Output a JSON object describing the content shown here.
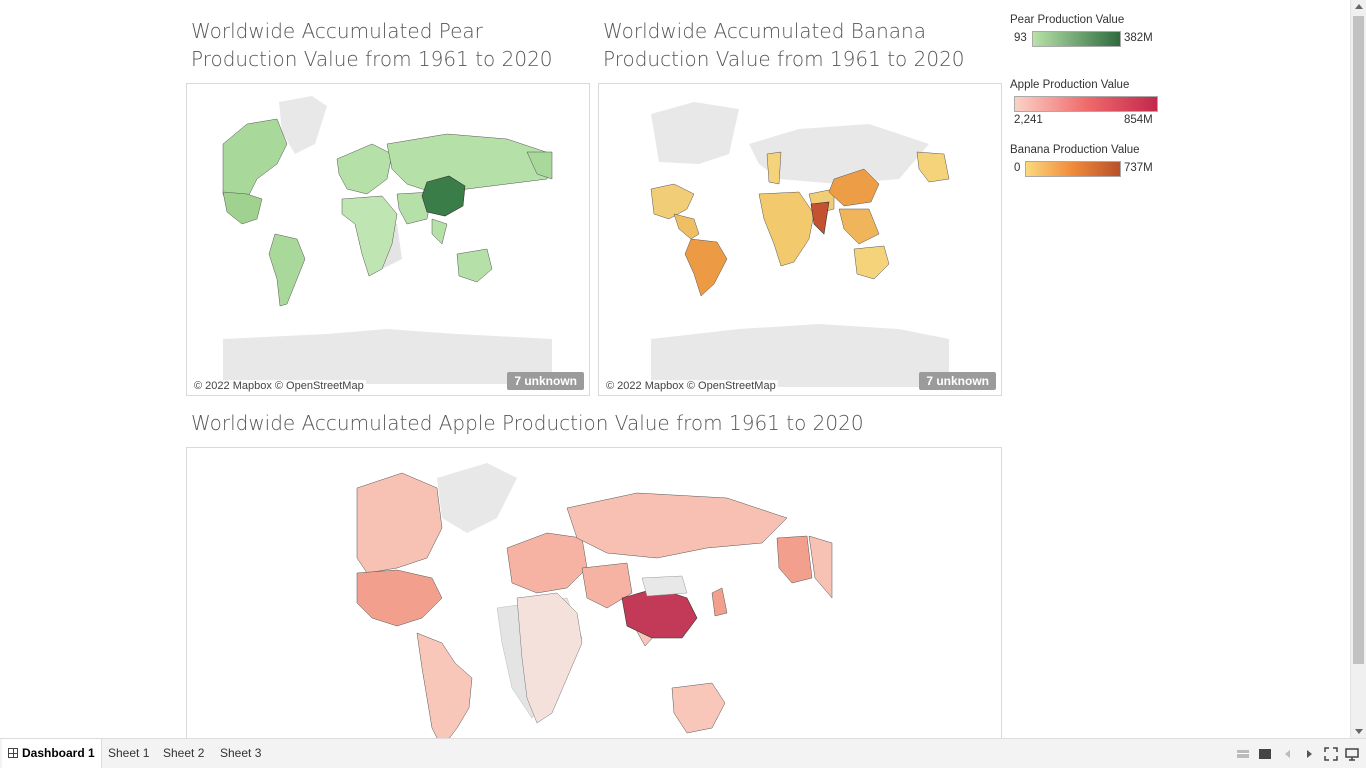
{
  "titles": {
    "pear": "Worldwide Accumulated Pear Production Value from 1961 to 2020",
    "banana": "Worldwide Accumulated Banana Production Value from 1961 to 2020",
    "apple": "Worldwide Accumulated Apple Production Value from 1961 to 2020"
  },
  "maps": {
    "credit": "© 2022 Mapbox © OpenStreetMap",
    "unknown_label": "7 unknown"
  },
  "legends": {
    "pear": {
      "title": "Pear Production Value",
      "min": "93",
      "max": "382M",
      "color_low": "#b7e2a8",
      "color_high": "#2f6b3f"
    },
    "apple": {
      "title": "Apple Production Value",
      "min": "2,241",
      "max": "854M",
      "color_low": "#fbd2c6",
      "color_high": "#c2284b"
    },
    "banana": {
      "title": "Banana Production Value",
      "min": "0",
      "max": "737M",
      "color_low": "#fbd97e",
      "color_high": "#b8502c"
    }
  },
  "tabs": [
    {
      "label": "Dashboard 1",
      "active": true
    },
    {
      "label": "Sheet 1",
      "active": false
    },
    {
      "label": "Sheet 2",
      "active": false
    },
    {
      "label": "Sheet 3",
      "active": false
    }
  ],
  "icons": {
    "dashboard_tab": "dashboard-grid-icon",
    "toolbar": [
      "show-sheets-icon",
      "filmstrip-icon",
      "prev-sheet-icon",
      "next-sheet-icon",
      "fullscreen-icon",
      "presentation-icon"
    ]
  }
}
